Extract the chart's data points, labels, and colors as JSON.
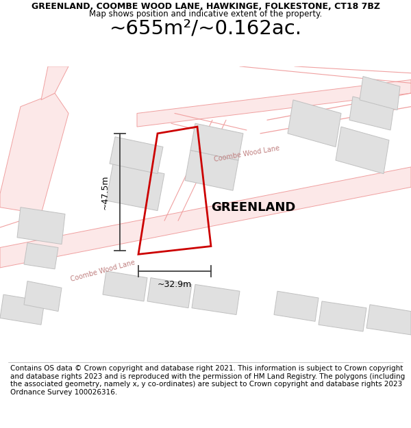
{
  "title_line1": "GREENLAND, COOMBE WOOD LANE, HAWKINGE, FOLKESTONE, CT18 7BZ",
  "title_line2": "Map shows position and indicative extent of the property.",
  "area_text": "~655m²/~0.162ac.",
  "label_property": "GREENLAND",
  "label_width": "~32.9m",
  "label_height": "~47.5m",
  "label_road_lower": "Coombe Wood Lane",
  "label_road_upper": "Coombe Wood Lane",
  "footer_text": "Contains OS data © Crown copyright and database right 2021. This information is subject to Crown copyright and database rights 2023 and is reproduced with the permission of HM Land Registry. The polygons (including the associated geometry, namely x, y co-ordinates) are subject to Crown copyright and database rights 2023 Ordnance Survey 100026316.",
  "bg_color": "#ffffff",
  "road_fill": "#fce8e8",
  "road_line": "#f0a0a0",
  "building_fill": "#e0e0e0",
  "building_edge": "#c0c0c0",
  "prop_edge": "#cc0000",
  "dim_color": "#404040",
  "text_color": "#000000",
  "road_text_color": "#c08080",
  "title_fontsize": 9.0,
  "subtitle_fontsize": 8.5,
  "area_fontsize": 21,
  "prop_label_fontsize": 13,
  "road_label_fontsize": 7,
  "dim_label_fontsize": 9,
  "footer_fontsize": 7.5
}
